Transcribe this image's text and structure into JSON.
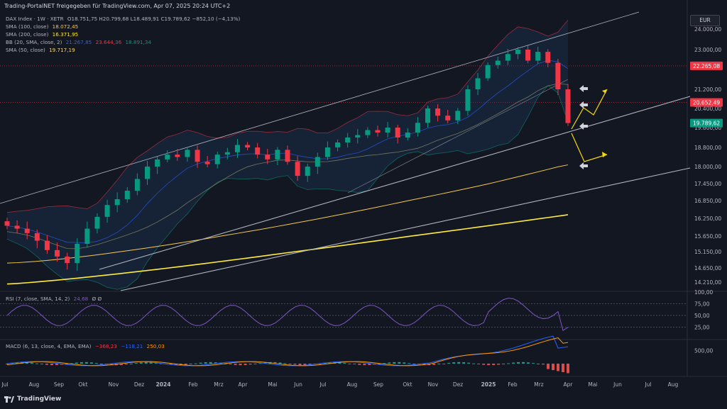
{
  "header": {
    "publisher": "Trading-PortalNET freigegeben für TradingView.com, Apr 07, 2025 20:24 UTC+2",
    "symbol": "DAX Index · 1W · XETR",
    "ohlc": "O18.751,75  H20.799,68  L18.489,91  C19.789,62  −852,10 (−4,13%)",
    "indicators": [
      {
        "label": "SMA (100, close)",
        "value": "18.072,45",
        "color": "#f7c948"
      },
      {
        "label": "SMA (200, close)",
        "value": "16.371,95",
        "color": "#ffeb3b"
      },
      {
        "label": "BB (20, SMA, close, 2)",
        "values": [
          "21.267,85",
          "23.644,36",
          "18.891,34"
        ],
        "colors": [
          "#2962ff",
          "#f23645",
          "#089981"
        ]
      },
      {
        "label": "SMA (50, close)",
        "value": "19.717,19",
        "color": "#f7d67d"
      }
    ]
  },
  "currency": "EUR",
  "price_axis": [
    "24.000,00",
    "23.000,00",
    "22.265,08",
    "21.200,00",
    "20.652,49",
    "20.400,00",
    "19.789,62",
    "19.600,00",
    "18.800,00",
    "18.000,00",
    "17.450,00",
    "16.850,00",
    "16.250,00",
    "15.650,00",
    "15.150,00",
    "14.650,00",
    "14.210,00"
  ],
  "price_badges": [
    {
      "value": "22.265,08",
      "color": "#f23645"
    },
    {
      "value": "20.652,49",
      "color": "#f23645"
    },
    {
      "value": "19.789,62",
      "color": "#089981"
    }
  ],
  "time_axis": [
    "Jul",
    "Aug",
    "Sep",
    "Okt",
    "Nov",
    "Dez",
    "2024",
    "Feb",
    "Mrz",
    "Apr",
    "Mai",
    "Jun",
    "Jul",
    "Aug",
    "Sep",
    "Okt",
    "Nov",
    "Dez",
    "2025",
    "Feb",
    "Mrz",
    "Apr",
    "Mai",
    "Jun",
    "Jul",
    "Aug"
  ],
  "rsi": {
    "label": "RSI (7, close, SMA, 14, 2)",
    "value": "24,68",
    "extra": "Ø  Ø",
    "axis": [
      "100,00",
      "75,00",
      "50,00",
      "25,00"
    ]
  },
  "macd": {
    "label": "MACD (6, 13, close, 4, EMA, EMA)",
    "values": [
      "−368,23",
      "−118,21",
      "250,03"
    ],
    "colors": [
      "#f23645",
      "#2962ff",
      "#ff9800"
    ],
    "axis": [
      "500,00"
    ]
  },
  "footer": {
    "brand": "TradingView"
  },
  "chart_data": {
    "type": "candlestick",
    "title": "DAX Index · 1W · XETR",
    "x": [
      "2023-07",
      "2023-08",
      "2023-09",
      "2023-10",
      "2023-11",
      "2023-12",
      "2024-01",
      "2024-02",
      "2024-03",
      "2024-04",
      "2024-05",
      "2024-06",
      "2024-07",
      "2024-08",
      "2024-09",
      "2024-10",
      "2024-11",
      "2024-12",
      "2025-01",
      "2025-02",
      "2025-03",
      "2025-04"
    ],
    "weekly_close": [
      16000,
      15900,
      15750,
      15500,
      15200,
      15000,
      14800,
      15400,
      15900,
      16300,
      16700,
      16900,
      17200,
      17600,
      18000,
      18300,
      18500,
      18400,
      18700,
      18200,
      18100,
      18500,
      18600,
      18900,
      18800,
      18500,
      18300,
      18700,
      18200,
      17700,
      18000,
      18400,
      18800,
      19000,
      19200,
      19300,
      19500,
      19400,
      19600,
      19200,
      19400,
      19800,
      20400,
      20100,
      19900,
      20300,
      21200,
      21700,
      22300,
      22500,
      22800,
      23000,
      22500,
      22900,
      22400,
      21200,
      19789.62
    ],
    "sma_100": 18072.45,
    "sma_200": 16371.95,
    "sma_50": 19717.19,
    "bb_basis": 21267.85,
    "bb_upper": 23644.36,
    "bb_lower": 18891.34,
    "last_close": 19789.62,
    "change": "−852,10 (−4,13%)",
    "ylim": [
      14000,
      24300
    ],
    "rsi_last": 24.68,
    "macd_last": [
      -368.23,
      -118.21,
      250.03
    ]
  }
}
